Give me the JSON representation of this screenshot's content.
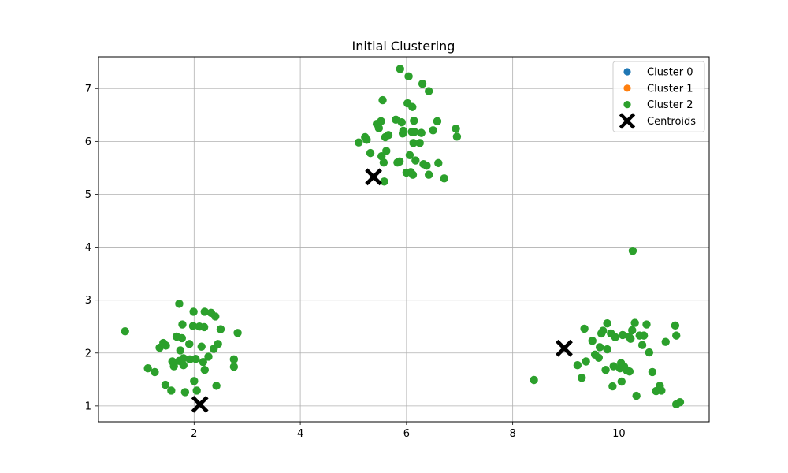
{
  "chart_data": {
    "type": "scatter",
    "title": "Initial Clustering",
    "xlabel": "",
    "ylabel": "",
    "xlim": [
      0.2,
      11.7
    ],
    "ylim": [
      0.7,
      7.6
    ],
    "xticks": [
      2,
      4,
      6,
      8,
      10
    ],
    "yticks": [
      1,
      2,
      3,
      4,
      5,
      6,
      7
    ],
    "grid": true,
    "legend_position": "top-right",
    "series": [
      {
        "name": "Cluster 0",
        "color": "#1f77b4",
        "marker": "circle",
        "points": []
      },
      {
        "name": "Cluster 1",
        "color": "#ff7f0e",
        "marker": "circle",
        "points": []
      },
      {
        "name": "Cluster 2",
        "color": "#2ca02c",
        "marker": "circle",
        "points": [
          [
            0.7,
            2.41
          ],
          [
            1.13,
            1.71
          ],
          [
            1.26,
            1.64
          ],
          [
            1.35,
            2.1
          ],
          [
            1.42,
            2.19
          ],
          [
            1.47,
            2.14
          ],
          [
            1.46,
            1.4
          ],
          [
            1.57,
            1.29
          ],
          [
            1.59,
            1.84
          ],
          [
            1.62,
            1.75
          ],
          [
            1.67,
            2.31
          ],
          [
            1.72,
            2.93
          ],
          [
            1.72,
            1.85
          ],
          [
            1.74,
            2.05
          ],
          [
            1.77,
            2.28
          ],
          [
            1.78,
            2.54
          ],
          [
            1.8,
            1.77
          ],
          [
            1.8,
            1.9
          ],
          [
            1.83,
            1.26
          ],
          [
            1.91,
            2.17
          ],
          [
            1.92,
            1.88
          ],
          [
            1.98,
            2.51
          ],
          [
            1.99,
            2.78
          ],
          [
            2.0,
            1.47
          ],
          [
            2.03,
            1.89
          ],
          [
            2.05,
            1.29
          ],
          [
            2.1,
            2.5
          ],
          [
            2.14,
            2.12
          ],
          [
            2.17,
            1.83
          ],
          [
            2.19,
            2.49
          ],
          [
            2.2,
            2.78
          ],
          [
            2.2,
            1.68
          ],
          [
            2.27,
            1.93
          ],
          [
            2.32,
            2.76
          ],
          [
            2.37,
            2.08
          ],
          [
            2.4,
            2.69
          ],
          [
            2.42,
            1.38
          ],
          [
            2.45,
            2.17
          ],
          [
            2.5,
            2.45
          ],
          [
            2.75,
            1.88
          ],
          [
            2.75,
            1.74
          ],
          [
            2.82,
            2.38
          ],
          [
            5.1,
            5.98
          ],
          [
            5.22,
            6.08
          ],
          [
            5.25,
            6.03
          ],
          [
            5.32,
            5.78
          ],
          [
            5.44,
            6.33
          ],
          [
            5.48,
            6.25
          ],
          [
            5.52,
            6.38
          ],
          [
            5.53,
            5.72
          ],
          [
            5.55,
            6.78
          ],
          [
            5.57,
            5.6
          ],
          [
            5.58,
            5.24
          ],
          [
            5.6,
            6.08
          ],
          [
            5.62,
            5.82
          ],
          [
            5.66,
            6.12
          ],
          [
            5.8,
            6.41
          ],
          [
            5.83,
            5.6
          ],
          [
            5.87,
            5.62
          ],
          [
            5.88,
            7.37
          ],
          [
            5.91,
            6.36
          ],
          [
            5.93,
            6.15
          ],
          [
            5.94,
            6.2
          ],
          [
            6.0,
            5.41
          ],
          [
            6.02,
            6.72
          ],
          [
            6.04,
            7.23
          ],
          [
            6.06,
            5.74
          ],
          [
            6.08,
            5.42
          ],
          [
            6.1,
            6.18
          ],
          [
            6.11,
            6.65
          ],
          [
            6.12,
            5.37
          ],
          [
            6.13,
            5.97
          ],
          [
            6.14,
            6.39
          ],
          [
            6.15,
            6.18
          ],
          [
            6.17,
            5.64
          ],
          [
            6.25,
            5.97
          ],
          [
            6.28,
            6.16
          ],
          [
            6.3,
            7.09
          ],
          [
            6.32,
            5.57
          ],
          [
            6.38,
            5.54
          ],
          [
            6.42,
            5.37
          ],
          [
            6.42,
            6.95
          ],
          [
            6.5,
            6.21
          ],
          [
            6.58,
            6.38
          ],
          [
            6.6,
            5.59
          ],
          [
            6.71,
            5.3
          ],
          [
            6.93,
            6.24
          ],
          [
            6.95,
            6.09
          ],
          [
            8.4,
            1.49
          ],
          [
            9.22,
            1.77
          ],
          [
            9.3,
            1.53
          ],
          [
            9.35,
            2.46
          ],
          [
            9.38,
            1.84
          ],
          [
            9.5,
            2.23
          ],
          [
            9.55,
            1.97
          ],
          [
            9.62,
            1.91
          ],
          [
            9.64,
            2.11
          ],
          [
            9.67,
            2.37
          ],
          [
            9.7,
            2.42
          ],
          [
            9.75,
            1.68
          ],
          [
            9.78,
            2.56
          ],
          [
            9.78,
            2.07
          ],
          [
            9.85,
            2.37
          ],
          [
            9.88,
            1.37
          ],
          [
            9.9,
            1.75
          ],
          [
            9.93,
            2.3
          ],
          [
            10.02,
            1.71
          ],
          [
            10.04,
            1.81
          ],
          [
            10.05,
            1.46
          ],
          [
            10.07,
            2.34
          ],
          [
            10.1,
            1.74
          ],
          [
            10.15,
            1.67
          ],
          [
            10.19,
            2.31
          ],
          [
            10.2,
            1.65
          ],
          [
            10.22,
            2.27
          ],
          [
            10.25,
            2.43
          ],
          [
            10.26,
            3.93
          ],
          [
            10.3,
            2.57
          ],
          [
            10.33,
            1.19
          ],
          [
            10.39,
            2.33
          ],
          [
            10.44,
            2.15
          ],
          [
            10.47,
            2.33
          ],
          [
            10.52,
            2.54
          ],
          [
            10.57,
            2.01
          ],
          [
            10.63,
            1.64
          ],
          [
            10.7,
            1.28
          ],
          [
            10.77,
            1.38
          ],
          [
            10.8,
            1.29
          ],
          [
            10.88,
            2.21
          ],
          [
            11.06,
            2.52
          ],
          [
            11.08,
            2.33
          ],
          [
            11.08,
            1.03
          ],
          [
            11.15,
            1.07
          ]
        ]
      }
    ],
    "centroids": {
      "name": "Centroids",
      "color": "#000000",
      "marker": "x-filled",
      "points": [
        [
          2.11,
          1.03
        ],
        [
          5.38,
          5.33
        ],
        [
          8.97,
          2.09
        ]
      ]
    }
  }
}
